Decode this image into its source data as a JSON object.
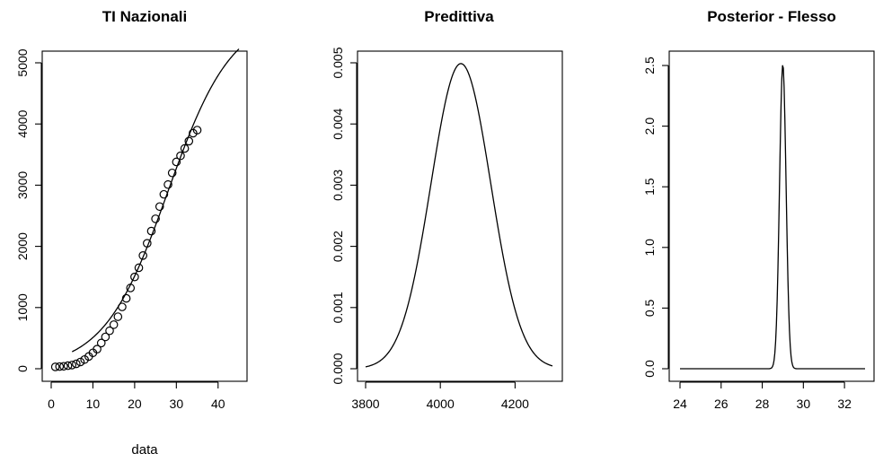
{
  "figure": {
    "background": "#ffffff",
    "ink": "#000000"
  },
  "chart_data": [
    {
      "type": "scatter",
      "title": "TI Nazionali",
      "xlabel": "data",
      "ylabel": "",
      "xlim": [
        0,
        45
      ],
      "ylim": [
        0,
        5000
      ],
      "xticks": [
        0,
        10,
        20,
        30,
        40
      ],
      "yticks": [
        0,
        1000,
        2000,
        3000,
        4000,
        5000
      ],
      "points": {
        "x": [
          1,
          2,
          3,
          4,
          5,
          6,
          7,
          8,
          9,
          10,
          11,
          12,
          13,
          14,
          15,
          16,
          17,
          18,
          19,
          20,
          21,
          22,
          23,
          24,
          25,
          26,
          27,
          28,
          29,
          30,
          31,
          32,
          33,
          34,
          35
        ],
        "y": [
          30,
          35,
          40,
          50,
          60,
          80,
          110,
          150,
          200,
          260,
          320,
          420,
          520,
          620,
          720,
          850,
          1010,
          1150,
          1320,
          1500,
          1650,
          1850,
          2050,
          2250,
          2450,
          2650,
          2850,
          3010,
          3200,
          3380,
          3480,
          3600,
          3720,
          3850,
          3900
        ]
      },
      "fit": {
        "model": "logistic",
        "K": 5800,
        "r": 0.13,
        "x0": 28,
        "x_range": [
          5,
          45
        ]
      }
    },
    {
      "type": "line",
      "title": "Predittiva",
      "xlabel": "",
      "ylabel": "",
      "xlim": [
        3800,
        4300
      ],
      "ylim": [
        0,
        0.005
      ],
      "xticks": [
        3800,
        4000,
        4200
      ],
      "yticks": [
        0,
        0.001,
        0.002,
        0.003,
        0.004,
        0.005
      ],
      "ytick_labels": [
        "0.000",
        "0.001",
        "0.002",
        "0.003",
        "0.004",
        "0.005"
      ],
      "curve": {
        "model": "normal",
        "mean": 4055,
        "sd": 80,
        "x_range": [
          3800,
          4300
        ]
      }
    },
    {
      "type": "line",
      "title": "Posterior - Flesso",
      "xlabel": "",
      "ylabel": "",
      "xlim": [
        24,
        33
      ],
      "ylim": [
        0,
        2.5
      ],
      "xticks": [
        24,
        26,
        28,
        30,
        32
      ],
      "yticks": [
        0,
        0.5,
        1.0,
        1.5,
        2.0,
        2.5
      ],
      "ytick_labels": [
        "0.0",
        "0.5",
        "1.0",
        "1.5",
        "2.0",
        "2.5"
      ],
      "curve": {
        "model": "normal",
        "mean": 29,
        "sd": 0.159,
        "x_range": [
          24,
          33
        ]
      }
    }
  ]
}
